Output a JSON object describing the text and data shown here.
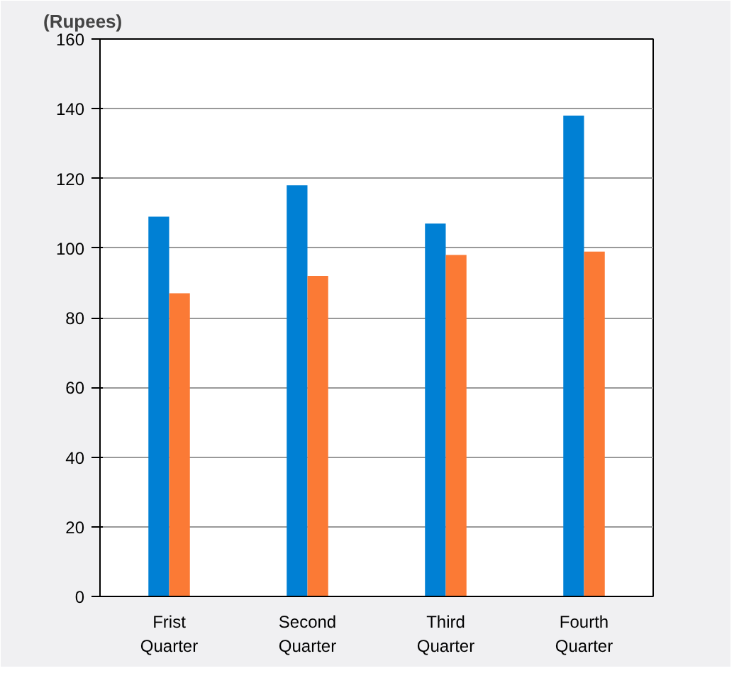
{
  "chart_data": {
    "type": "bar",
    "title": "(Rupees)",
    "categories": [
      "Frist Quarter",
      "Second Quarter",
      "Third Quarter",
      "Fourth Quarter"
    ],
    "series": [
      {
        "color": "#0080d4",
        "values": [
          109,
          118,
          107,
          138
        ]
      },
      {
        "color": "#fb7a35",
        "values": [
          87,
          92,
          98,
          99
        ]
      }
    ],
    "ylim": [
      0,
      160
    ],
    "yticks": [
      0,
      20,
      40,
      60,
      80,
      100,
      120,
      140,
      160
    ],
    "grid": "y"
  }
}
